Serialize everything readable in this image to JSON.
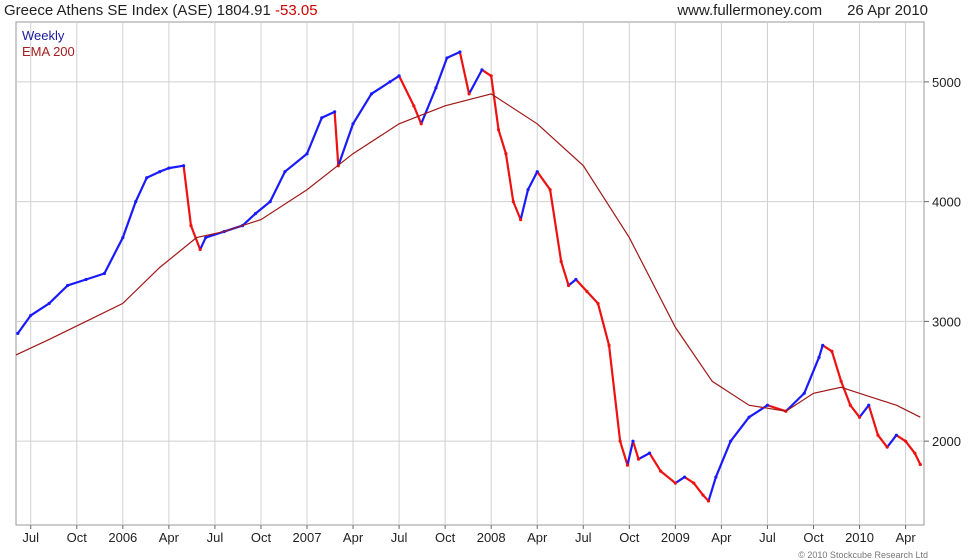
{
  "header": {
    "title": "Greece Athens SE Index (ASE)",
    "last": "1804.91",
    "change": "-53.05",
    "site": "www.fullermoney.com",
    "date": "26 Apr 2010"
  },
  "legend": {
    "weekly": "Weekly",
    "ema": "EMA 200"
  },
  "copyright": "© 2010 Stockcube Research Ltd",
  "colors": {
    "up": "#1a1aff",
    "down": "#ee1111",
    "ema": "#a01818",
    "grid": "#d0d0d0"
  },
  "chart_data": {
    "type": "line",
    "ylim": [
      1300,
      5500
    ],
    "yticks": [
      2000,
      3000,
      4000,
      5000
    ],
    "xlim": [
      2005.42,
      2010.35
    ],
    "xticks": [
      {
        "label": "Jul",
        "x": 2005.5
      },
      {
        "label": "Oct",
        "x": 2005.75
      },
      {
        "label": "2006",
        "x": 2006.0
      },
      {
        "label": "Apr",
        "x": 2006.25
      },
      {
        "label": "Jul",
        "x": 2006.5
      },
      {
        "label": "Oct",
        "x": 2006.75
      },
      {
        "label": "2007",
        "x": 2007.0
      },
      {
        "label": "Apr",
        "x": 2007.25
      },
      {
        "label": "Jul",
        "x": 2007.5
      },
      {
        "label": "Oct",
        "x": 2007.75
      },
      {
        "label": "2008",
        "x": 2008.0
      },
      {
        "label": "Apr",
        "x": 2008.25
      },
      {
        "label": "Jul",
        "x": 2008.5
      },
      {
        "label": "Oct",
        "x": 2008.75
      },
      {
        "label": "2009",
        "x": 2009.0
      },
      {
        "label": "Apr",
        "x": 2009.25
      },
      {
        "label": "Jul",
        "x": 2009.5
      },
      {
        "label": "Oct",
        "x": 2009.75
      },
      {
        "label": "2010",
        "x": 2010.0
      },
      {
        "label": "Apr",
        "x": 2010.25
      }
    ],
    "series": [
      {
        "name": "Weekly",
        "x": [
          2005.43,
          2005.5,
          2005.6,
          2005.7,
          2005.8,
          2005.9,
          2006.0,
          2006.07,
          2006.13,
          2006.2,
          2006.25,
          2006.33,
          2006.37,
          2006.42,
          2006.45,
          2006.55,
          2006.65,
          2006.72,
          2006.8,
          2006.88,
          2007.0,
          2007.08,
          2007.15,
          2007.17,
          2007.25,
          2007.35,
          2007.45,
          2007.5,
          2007.58,
          2007.62,
          2007.7,
          2007.76,
          2007.83,
          2007.88,
          2007.95,
          2008.0,
          2008.04,
          2008.08,
          2008.12,
          2008.16,
          2008.2,
          2008.25,
          2008.32,
          2008.38,
          2008.42,
          2008.46,
          2008.52,
          2008.58,
          2008.64,
          2008.7,
          2008.74,
          2008.77,
          2008.8,
          2008.86,
          2008.92,
          2009.0,
          2009.05,
          2009.1,
          2009.15,
          2009.18,
          2009.22,
          2009.3,
          2009.4,
          2009.5,
          2009.6,
          2009.7,
          2009.78,
          2009.8,
          2009.85,
          2009.9,
          2009.95,
          2010.0,
          2010.05,
          2010.1,
          2010.15,
          2010.2,
          2010.25,
          2010.3,
          2010.33
        ],
        "values": [
          2900,
          3050,
          3150,
          3300,
          3350,
          3400,
          3700,
          4000,
          4200,
          4250,
          4280,
          4300,
          3800,
          3600,
          3700,
          3750,
          3800,
          3900,
          4000,
          4250,
          4400,
          4700,
          4750,
          4300,
          4650,
          4900,
          5000,
          5050,
          4800,
          4650,
          4950,
          5200,
          5250,
          4900,
          5100,
          5050,
          4600,
          4400,
          4000,
          3850,
          4100,
          4250,
          4100,
          3500,
          3300,
          3350,
          3250,
          3150,
          2800,
          2000,
          1800,
          2000,
          1850,
          1900,
          1750,
          1650,
          1700,
          1650,
          1550,
          1500,
          1700,
          2000,
          2200,
          2300,
          2250,
          2400,
          2700,
          2800,
          2750,
          2500,
          2300,
          2200,
          2300,
          2050,
          1950,
          2050,
          2000,
          1900,
          1805
        ]
      },
      {
        "name": "EMA 200",
        "x": [
          2005.42,
          2005.6,
          2005.8,
          2006.0,
          2006.2,
          2006.4,
          2006.55,
          2006.75,
          2007.0,
          2007.25,
          2007.5,
          2007.75,
          2008.0,
          2008.25,
          2008.5,
          2008.75,
          2009.0,
          2009.2,
          2009.4,
          2009.6,
          2009.75,
          2009.9,
          2010.0,
          2010.1,
          2010.2,
          2010.33
        ],
        "values": [
          2720,
          2850,
          3000,
          3150,
          3450,
          3700,
          3750,
          3850,
          4100,
          4400,
          4650,
          4800,
          4900,
          4650,
          4300,
          3700,
          2950,
          2500,
          2300,
          2250,
          2400,
          2450,
          2400,
          2350,
          2300,
          2200
        ]
      }
    ]
  }
}
